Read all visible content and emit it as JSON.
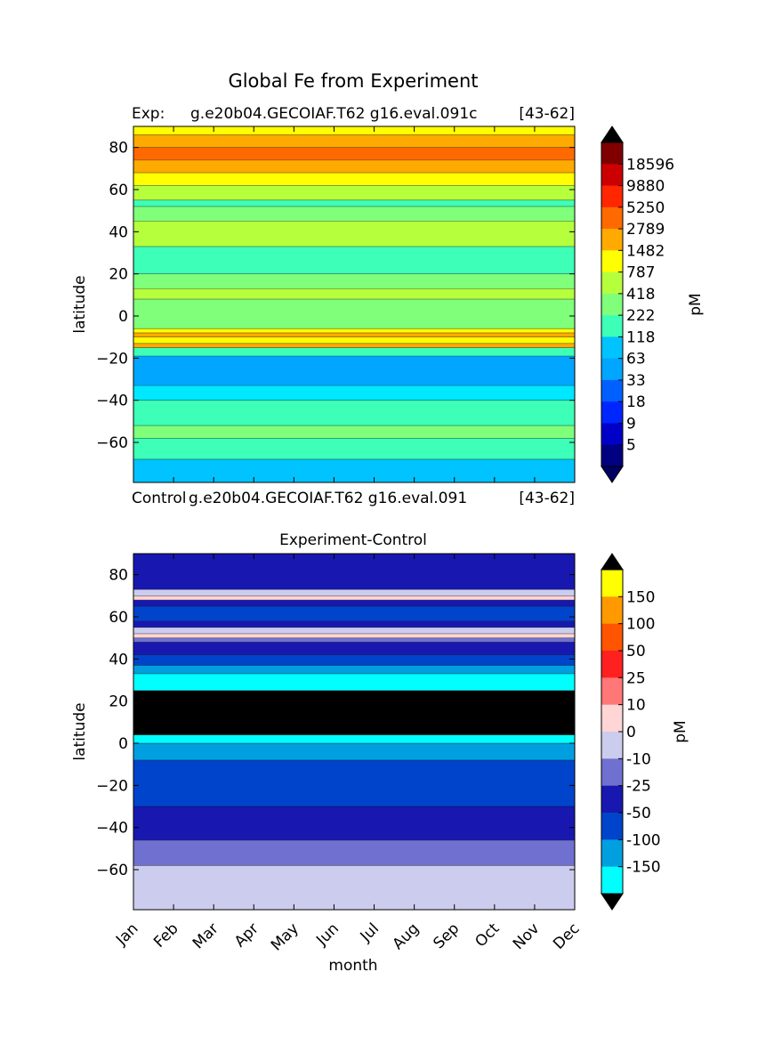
{
  "figure_title": "Global Fe from Experiment",
  "chart_data": [
    {
      "type": "heatmap",
      "panel": "top",
      "title_left": "Exp:",
      "title_center": "g.e20b04.GECOIAF.T62 g16.eval.091c",
      "title_right": "[43-62]",
      "ylabel": "latitude",
      "ylim": [
        -79,
        90
      ],
      "xlim": [
        0.5,
        11.5
      ],
      "y_ticks": [
        80,
        60,
        40,
        20,
        0,
        -20,
        -40,
        -60
      ],
      "y_tick_labels": [
        "80",
        "60",
        "40",
        "20",
        "0",
        "−20",
        "−40",
        "−60"
      ],
      "colorbar": {
        "label": "pM",
        "extend": "both",
        "tick_labels": [
          "18596",
          "9880",
          "5250",
          "2789",
          "1482",
          "787",
          "418",
          "222",
          "118",
          "63",
          "33",
          "18",
          "9",
          "5"
        ],
        "colors_top_to_bottom": [
          "#800000",
          "#cc0000",
          "#ff2600",
          "#ff6a00",
          "#ffaa00",
          "#ffff00",
          "#b6ff3d",
          "#7fff7a",
          "#3dffb7",
          "#00c3ff",
          "#00a6ff",
          "#0060ff",
          "#0026ff",
          "#0000c8",
          "#000080"
        ],
        "under_color": "#000060",
        "over_color": "#000000"
      },
      "bands": [
        {
          "lat_from": -79,
          "lat_to": -68,
          "color": "#00c3ff"
        },
        {
          "lat_from": -68,
          "lat_to": -58,
          "color": "#3dffb7"
        },
        {
          "lat_from": -58,
          "lat_to": -52,
          "color": "#7fff7a"
        },
        {
          "lat_from": -52,
          "lat_to": -40,
          "color": "#3dffb7"
        },
        {
          "lat_from": -40,
          "lat_to": -33,
          "color": "#00e8ff"
        },
        {
          "lat_from": -33,
          "lat_to": -19,
          "color": "#00a6ff"
        },
        {
          "lat_from": -19,
          "lat_to": -15,
          "color": "#3dffb7"
        },
        {
          "lat_from": -15,
          "lat_to": -13,
          "color": "#ffaa00"
        },
        {
          "lat_from": -13,
          "lat_to": -10,
          "color": "#ffff00"
        },
        {
          "lat_from": -10,
          "lat_to": -8,
          "color": "#ffaa00"
        },
        {
          "lat_from": -8,
          "lat_to": -6,
          "color": "#ffff00"
        },
        {
          "lat_from": -6,
          "lat_to": 8,
          "color": "#7fff7a"
        },
        {
          "lat_from": 8,
          "lat_to": 13,
          "color": "#b6ff3d"
        },
        {
          "lat_from": 13,
          "lat_to": 20,
          "color": "#7fff7a"
        },
        {
          "lat_from": 20,
          "lat_to": 33,
          "color": "#3dffb7"
        },
        {
          "lat_from": 33,
          "lat_to": 45,
          "color": "#b6ff3d"
        },
        {
          "lat_from": 45,
          "lat_to": 52,
          "color": "#7fff7a"
        },
        {
          "lat_from": 52,
          "lat_to": 55,
          "color": "#3dffb7"
        },
        {
          "lat_from": 55,
          "lat_to": 62,
          "color": "#b6ff3d"
        },
        {
          "lat_from": 62,
          "lat_to": 68,
          "color": "#ffff00"
        },
        {
          "lat_from": 68,
          "lat_to": 74,
          "color": "#ffaa00"
        },
        {
          "lat_from": 74,
          "lat_to": 80,
          "color": "#ff6a00"
        },
        {
          "lat_from": 80,
          "lat_to": 86,
          "color": "#ffaa00"
        },
        {
          "lat_from": 86,
          "lat_to": 90,
          "color": "#ffff00"
        }
      ]
    },
    {
      "type": "heatmap",
      "panel": "bottom",
      "label_left": "Control",
      "label_center": "g.e20b04.GECOIAF.T62 g16.eval.091",
      "label_right": "[43-62]",
      "title": "Experiment-Control",
      "xlabel": "month",
      "ylabel": "latitude",
      "ylim": [
        -79,
        90
      ],
      "xlim": [
        0.5,
        11.5
      ],
      "x_tick_labels": [
        "Jan",
        "Feb",
        "Mar",
        "Apr",
        "May",
        "Jun",
        "Jul",
        "Aug",
        "Sep",
        "Oct",
        "Nov",
        "Dec"
      ],
      "y_ticks": [
        80,
        60,
        40,
        20,
        0,
        -20,
        -40,
        -60
      ],
      "y_tick_labels": [
        "80",
        "60",
        "40",
        "20",
        "0",
        "−20",
        "−40",
        "−60"
      ],
      "colorbar": {
        "label": "pM",
        "extend": "both",
        "tick_labels": [
          "150",
          "100",
          "50",
          "25",
          "10",
          "0",
          "-10",
          "-25",
          "-50",
          "-100",
          "-150"
        ],
        "colors_top_to_bottom": [
          "#ffff00",
          "#ff9900",
          "#ff5500",
          "#ff2020",
          "#ff7777",
          "#ffd5d5",
          "#ccccee",
          "#7070d0",
          "#1818b0",
          "#0044cc",
          "#00a0e0",
          "#00ffff"
        ],
        "under_color": "#000000",
        "over_color": "#000000"
      },
      "bands": [
        {
          "lat_from": -79,
          "lat_to": -58,
          "color": "#ccccee"
        },
        {
          "lat_from": -58,
          "lat_to": -46,
          "color": "#7070d0"
        },
        {
          "lat_from": -46,
          "lat_to": -30,
          "color": "#1818b0"
        },
        {
          "lat_from": -30,
          "lat_to": -8,
          "color": "#0044cc"
        },
        {
          "lat_from": -8,
          "lat_to": 0,
          "color": "#00a0e0"
        },
        {
          "lat_from": 0,
          "lat_to": 4,
          "color": "#00ffff"
        },
        {
          "lat_from": 4,
          "lat_to": 25,
          "color": "#000000"
        },
        {
          "lat_from": 25,
          "lat_to": 33,
          "color": "#00ffff"
        },
        {
          "lat_from": 33,
          "lat_to": 37,
          "color": "#00a0e0"
        },
        {
          "lat_from": 37,
          "lat_to": 42,
          "color": "#0044cc"
        },
        {
          "lat_from": 42,
          "lat_to": 48,
          "color": "#1818b0"
        },
        {
          "lat_from": 48,
          "lat_to": 50,
          "color": "#7070d0"
        },
        {
          "lat_from": 50,
          "lat_to": 52,
          "color": "#ffd5d5"
        },
        {
          "lat_from": 52,
          "lat_to": 55,
          "color": "#ccccee"
        },
        {
          "lat_from": 55,
          "lat_to": 58,
          "color": "#1818b0"
        },
        {
          "lat_from": 58,
          "lat_to": 65,
          "color": "#0044cc"
        },
        {
          "lat_from": 65,
          "lat_to": 68,
          "color": "#1818b0"
        },
        {
          "lat_from": 68,
          "lat_to": 70,
          "color": "#ffd5d5"
        },
        {
          "lat_from": 70,
          "lat_to": 73,
          "color": "#ccccee"
        },
        {
          "lat_from": 73,
          "lat_to": 90,
          "color": "#1818b0"
        }
      ]
    }
  ]
}
